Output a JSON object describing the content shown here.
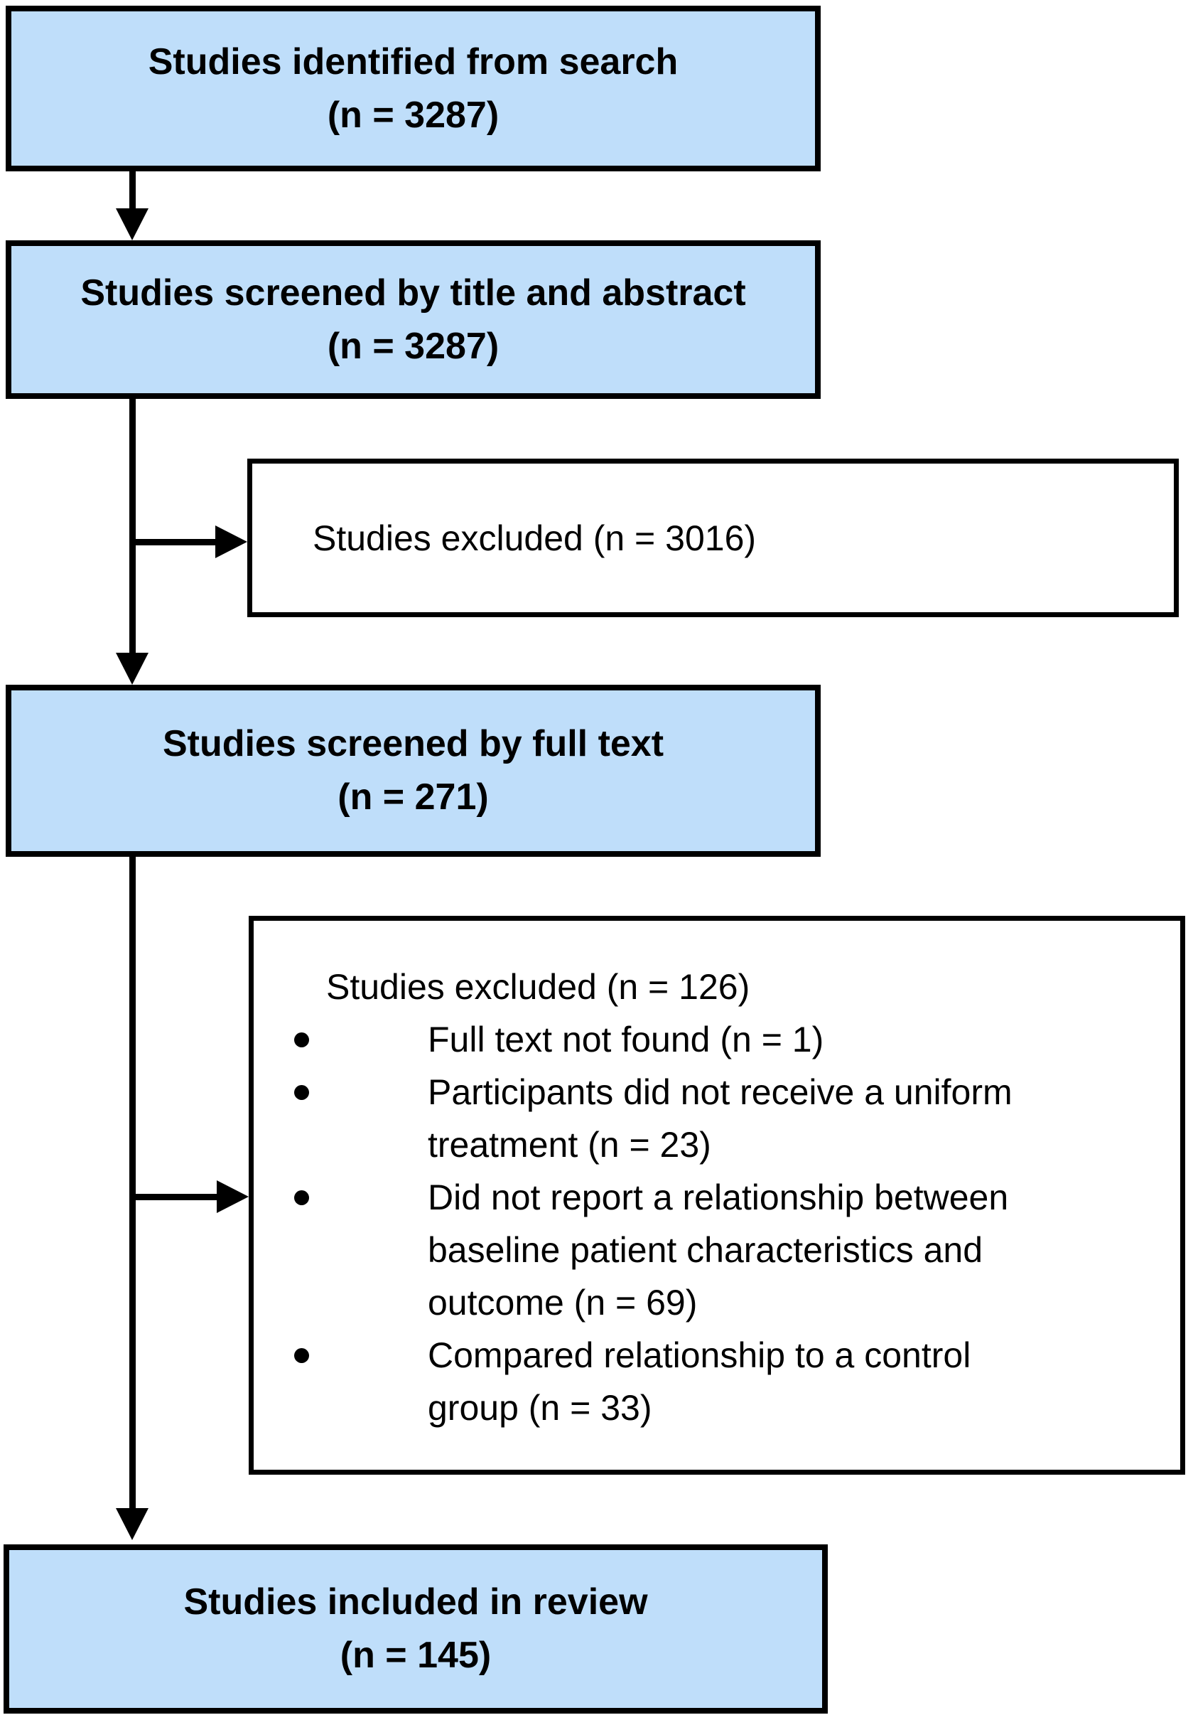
{
  "colors": {
    "box_fill": "#bfdefa",
    "box_border": "#000000",
    "background": "#ffffff"
  },
  "flow": {
    "identified": {
      "title": "Studies identified from search",
      "count": "(n = 3287)"
    },
    "screened_title_abstract": {
      "title": "Studies screened by title and abstract",
      "count": "(n = 3287)"
    },
    "excluded_screening": {
      "label": "Studies excluded (n = 3016)"
    },
    "screened_full_text": {
      "title": "Studies screened by full text",
      "count": "(n = 271)"
    },
    "excluded_full_text": {
      "heading": "Studies excluded (n = 126)",
      "bullets": [
        {
          "lines": [
            "Full text not found (n = 1)"
          ]
        },
        {
          "lines": [
            "Participants did not receive a uniform",
            "treatment (n = 23)"
          ]
        },
        {
          "lines": [
            "Did not report a relationship between",
            "baseline patient characteristics and",
            "outcome (n = 69)"
          ]
        },
        {
          "lines": [
            "Compared relationship to a control",
            "group (n = 33)"
          ]
        }
      ]
    },
    "included": {
      "title": "Studies included in review",
      "count": "(n = 145)"
    }
  }
}
